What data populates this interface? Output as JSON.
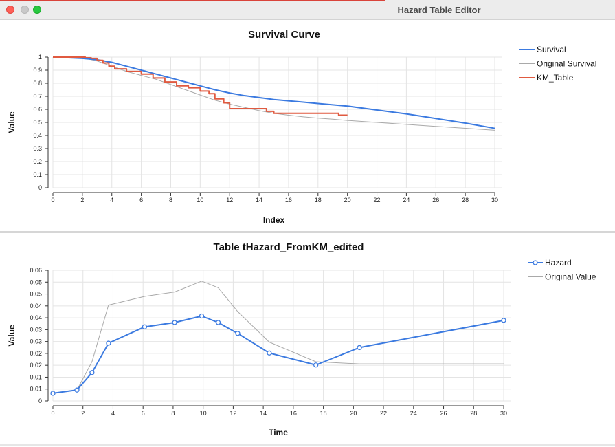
{
  "window": {
    "title": "Hazard Table Editor"
  },
  "colors": {
    "blue": "#3b7ae0",
    "gray": "#a9a9a9",
    "red": "#e05a40",
    "grid": "#e4e4e4"
  },
  "chart_data": [
    {
      "type": "line",
      "title": "Survival Curve",
      "xlabel": "Index",
      "ylabel": "Value",
      "xlim": [
        0,
        30
      ],
      "ylim": [
        0,
        1
      ],
      "xticks": [
        "0",
        "2",
        "4",
        "6",
        "8",
        "10",
        "12",
        "14",
        "16",
        "18",
        "20",
        "22",
        "24",
        "26",
        "28",
        "30"
      ],
      "yticks": [
        "0",
        "0.1",
        "0.2",
        "0.3",
        "0.4",
        "0.5",
        "0.6",
        "0.7",
        "0.8",
        "0.9",
        "1"
      ],
      "grid": true,
      "legend_position": "right",
      "series": [
        {
          "name": "Survival",
          "color": "#3b7ae0",
          "style": "line",
          "x": [
            0,
            2,
            3,
            4,
            5,
            6,
            7,
            8,
            9,
            10,
            11,
            12,
            13,
            14,
            15,
            16,
            17,
            18,
            19,
            20,
            22,
            24,
            26,
            28,
            30
          ],
          "y": [
            1.0,
            0.99,
            0.98,
            0.96,
            0.93,
            0.9,
            0.87,
            0.84,
            0.81,
            0.78,
            0.75,
            0.725,
            0.705,
            0.69,
            0.675,
            0.665,
            0.655,
            0.645,
            0.635,
            0.625,
            0.595,
            0.565,
            0.53,
            0.495,
            0.455
          ]
        },
        {
          "name": "Original Survival",
          "color": "#a9a9a9",
          "style": "line",
          "x": [
            0,
            2,
            3,
            4,
            5,
            6,
            7,
            8,
            9,
            10,
            11,
            12,
            13,
            14,
            15,
            16,
            17,
            18,
            19,
            20,
            22,
            24,
            26,
            28,
            30
          ],
          "y": [
            1.0,
            0.995,
            0.97,
            0.93,
            0.89,
            0.86,
            0.83,
            0.79,
            0.75,
            0.71,
            0.67,
            0.64,
            0.615,
            0.59,
            0.57,
            0.555,
            0.543,
            0.533,
            0.525,
            0.515,
            0.5,
            0.485,
            0.47,
            0.455,
            0.44
          ]
        },
        {
          "name": "KM_Table",
          "color": "#e05a40",
          "style": "step",
          "x": [
            0,
            2.2,
            2.6,
            3.0,
            3.4,
            3.8,
            4.2,
            5.0,
            6.0,
            6.8,
            7.6,
            8.4,
            9.2,
            10.0,
            10.6,
            11.0,
            11.6,
            12.0,
            13.0,
            14.5,
            15.0,
            17.0,
            19.4,
            20.0
          ],
          "y": [
            1.0,
            0.995,
            0.99,
            0.975,
            0.955,
            0.93,
            0.91,
            0.89,
            0.87,
            0.84,
            0.81,
            0.78,
            0.765,
            0.74,
            0.72,
            0.68,
            0.65,
            0.605,
            0.605,
            0.585,
            0.57,
            0.57,
            0.555,
            0.555
          ]
        }
      ]
    },
    {
      "type": "line",
      "title": "Table tHazard_FromKM_edited",
      "xlabel": "Time",
      "ylabel": "Value",
      "xlim": [
        0,
        30
      ],
      "ylim": [
        0,
        0.06
      ],
      "xticks": [
        "0",
        "2",
        "4",
        "6",
        "8",
        "10",
        "12",
        "14",
        "16",
        "18",
        "20",
        "22",
        "24",
        "26",
        "28",
        "30"
      ],
      "yticks": [
        "0",
        "0.01",
        "0.01",
        "0.02",
        "0.02",
        "0.03",
        "0.03",
        "0.04",
        "0.04",
        "0.05",
        "0.05",
        "0.06"
      ],
      "grid": true,
      "legend_position": "right",
      "series": [
        {
          "name": "Hazard",
          "color": "#3b7ae0",
          "style": "line-markers",
          "x": [
            0,
            1.6,
            2.6,
            3.7,
            6.1,
            8.1,
            9.9,
            11.0,
            12.3,
            14.4,
            17.5,
            20.4,
            30.0
          ],
          "y": [
            0.0035,
            0.005,
            0.013,
            0.0265,
            0.034,
            0.036,
            0.039,
            0.036,
            0.031,
            0.022,
            0.0165,
            0.0245,
            0.037
          ]
        },
        {
          "name": "Original Value",
          "color": "#a9a9a9",
          "style": "line",
          "x": [
            0,
            1.6,
            2.6,
            3.7,
            6.1,
            8.1,
            9.9,
            11.0,
            12.3,
            14.4,
            17.5,
            20.4,
            30.0
          ],
          "y": [
            0.0035,
            0.005,
            0.018,
            0.044,
            0.048,
            0.05,
            0.055,
            0.052,
            0.041,
            0.027,
            0.018,
            0.017,
            0.017
          ]
        }
      ]
    }
  ]
}
